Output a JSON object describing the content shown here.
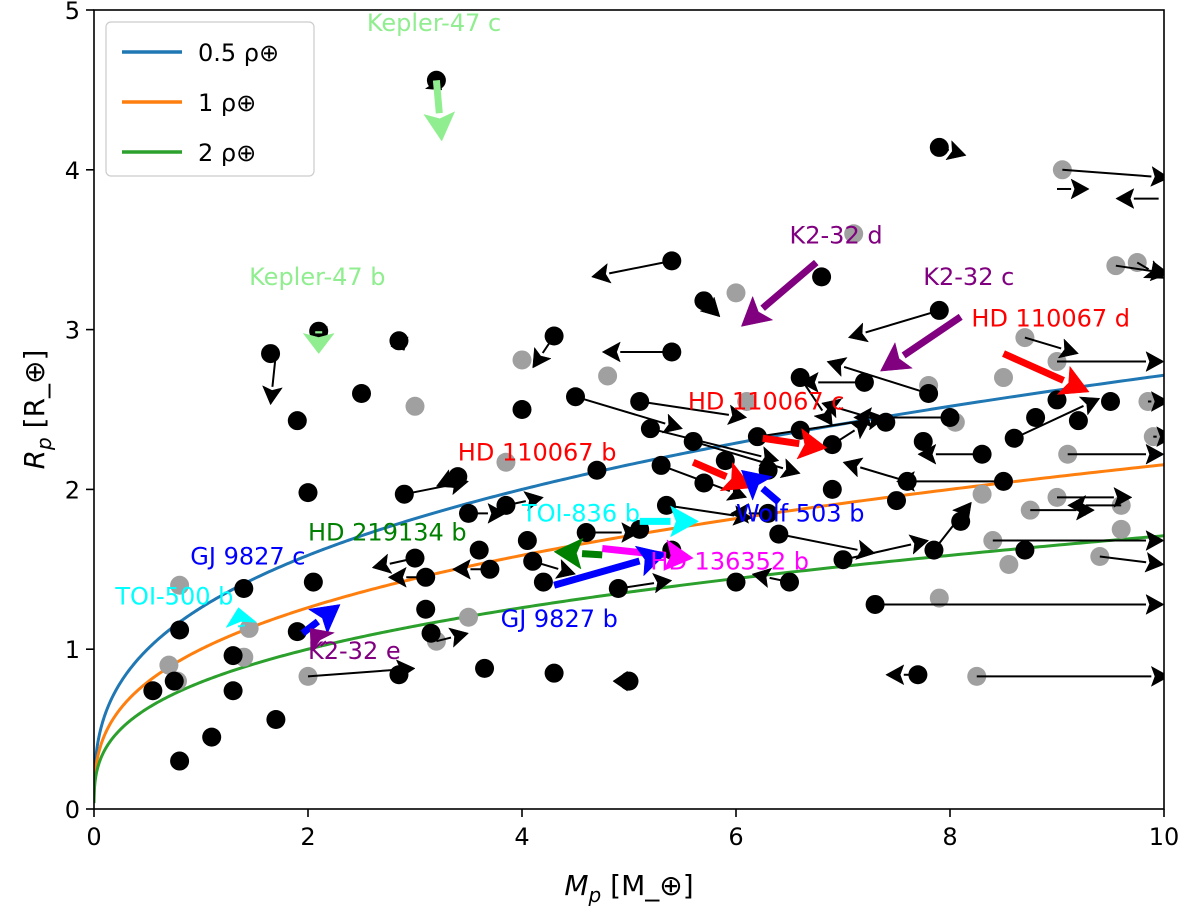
{
  "chart_data": {
    "type": "scatter",
    "xlabel": "M_p [M_⊕]",
    "ylabel": "R_p [R_⊕]",
    "xlim": [
      0,
      10
    ],
    "ylim": [
      0,
      5
    ],
    "xticks": [
      "0",
      "2",
      "4",
      "6",
      "8",
      "10"
    ],
    "yticks": [
      "0",
      "1",
      "2",
      "3",
      "4",
      "5"
    ],
    "legend_position": "top-left",
    "density_curves": [
      {
        "name": "0.5 ρ⊕",
        "rho": 0.5,
        "color": "#1f77b4"
      },
      {
        "name": "1 ρ⊕",
        "rho": 1.0,
        "color": "#ff7f0e"
      },
      {
        "name": "2 ρ⊕",
        "rho": 2.0,
        "color": "#2ca02c"
      }
    ],
    "black_points": [
      [
        0.8,
        0.3
      ],
      [
        0.55,
        0.74
      ],
      [
        0.75,
        0.8
      ],
      [
        0.8,
        1.12
      ],
      [
        1.1,
        0.45
      ],
      [
        1.3,
        0.74
      ],
      [
        1.3,
        0.96
      ],
      [
        1.4,
        1.38
      ],
      [
        1.9,
        1.11
      ],
      [
        1.7,
        0.56
      ],
      [
        1.65,
        2.85
      ],
      [
        1.9,
        2.43
      ],
      [
        2.0,
        1.98
      ],
      [
        2.05,
        1.42
      ],
      [
        2.1,
        2.99
      ],
      [
        2.5,
        2.6
      ],
      [
        2.85,
        2.93
      ],
      [
        2.85,
        0.84
      ],
      [
        2.9,
        1.97
      ],
      [
        3.0,
        1.57
      ],
      [
        3.1,
        1.45
      ],
      [
        3.1,
        1.25
      ],
      [
        3.15,
        1.1
      ],
      [
        3.2,
        4.56
      ],
      [
        3.4,
        2.08
      ],
      [
        3.5,
        1.85
      ],
      [
        3.6,
        1.62
      ],
      [
        3.7,
        1.5
      ],
      [
        3.65,
        0.88
      ],
      [
        3.85,
        1.9
      ],
      [
        4.0,
        2.5
      ],
      [
        4.05,
        1.68
      ],
      [
        4.1,
        1.55
      ],
      [
        4.2,
        1.42
      ],
      [
        4.3,
        2.96
      ],
      [
        4.3,
        0.85
      ],
      [
        4.5,
        2.58
      ],
      [
        4.6,
        1.73
      ],
      [
        4.7,
        2.12
      ],
      [
        4.9,
        1.38
      ],
      [
        5.0,
        0.8
      ],
      [
        5.1,
        2.55
      ],
      [
        5.1,
        1.75
      ],
      [
        5.2,
        2.38
      ],
      [
        5.3,
        2.15
      ],
      [
        5.35,
        1.9
      ],
      [
        5.4,
        1.62
      ],
      [
        5.4,
        2.86
      ],
      [
        5.4,
        3.43
      ],
      [
        5.6,
        2.3
      ],
      [
        5.7,
        2.04
      ],
      [
        5.7,
        3.18
      ],
      [
        5.9,
        2.18
      ],
      [
        6.0,
        1.42
      ],
      [
        6.2,
        2.33
      ],
      [
        6.3,
        1.85
      ],
      [
        6.3,
        2.12
      ],
      [
        6.4,
        1.72
      ],
      [
        6.5,
        1.42
      ],
      [
        6.6,
        2.7
      ],
      [
        6.6,
        2.37
      ],
      [
        6.8,
        3.33
      ],
      [
        6.9,
        2.28
      ],
      [
        6.9,
        2.0
      ],
      [
        7.0,
        1.56
      ],
      [
        7.2,
        2.67
      ],
      [
        7.3,
        1.28
      ],
      [
        7.4,
        2.42
      ],
      [
        7.5,
        1.93
      ],
      [
        7.6,
        2.05
      ],
      [
        7.7,
        0.84
      ],
      [
        7.75,
        2.3
      ],
      [
        7.8,
        2.6
      ],
      [
        7.85,
        1.62
      ],
      [
        7.9,
        4.14
      ],
      [
        7.9,
        3.12
      ],
      [
        8.0,
        2.45
      ],
      [
        8.1,
        1.8
      ],
      [
        8.3,
        2.22
      ],
      [
        8.5,
        2.05
      ],
      [
        8.6,
        2.32
      ],
      [
        8.7,
        1.62
      ],
      [
        8.8,
        2.45
      ],
      [
        9.0,
        2.56
      ],
      [
        9.2,
        2.43
      ],
      [
        9.5,
        2.55
      ]
    ],
    "gray_points": [
      [
        0.8,
        1.4
      ],
      [
        0.7,
        0.9
      ],
      [
        0.78,
        0.8
      ],
      [
        1.45,
        1.13
      ],
      [
        1.4,
        0.95
      ],
      [
        2.0,
        0.83
      ],
      [
        3.0,
        2.52
      ],
      [
        3.2,
        1.05
      ],
      [
        3.5,
        1.2
      ],
      [
        3.85,
        2.17
      ],
      [
        4.0,
        2.81
      ],
      [
        4.8,
        2.71
      ],
      [
        6.0,
        3.23
      ],
      [
        6.1,
        2.55
      ],
      [
        7.1,
        3.6
      ],
      [
        7.8,
        2.65
      ],
      [
        7.9,
        1.32
      ],
      [
        8.05,
        2.42
      ],
      [
        8.3,
        1.97
      ],
      [
        8.4,
        1.68
      ],
      [
        8.5,
        2.7
      ],
      [
        8.55,
        1.53
      ],
      [
        8.7,
        2.95
      ],
      [
        8.75,
        1.87
      ],
      [
        9.0,
        2.8
      ],
      [
        9.05,
        4.0
      ],
      [
        9.1,
        2.22
      ],
      [
        9.0,
        1.95
      ],
      [
        9.4,
        1.58
      ],
      [
        9.55,
        3.4
      ],
      [
        9.75,
        3.42
      ],
      [
        9.85,
        2.55
      ],
      [
        9.9,
        2.33
      ],
      [
        9.6,
        1.9
      ],
      [
        9.6,
        1.75
      ],
      [
        8.25,
        0.83
      ]
    ],
    "black_arrows": [
      [
        1.7,
        2.85,
        -0.05,
        -0.32
      ],
      [
        3.15,
        4.56,
        0.1,
        -0.06
      ],
      [
        2.1,
        2.99,
        0.05,
        -0.05
      ],
      [
        2.85,
        2.93,
        0.05,
        -0.06
      ],
      [
        3.1,
        1.45,
        -0.35,
        0.0
      ],
      [
        3.0,
        1.57,
        -0.4,
        -0.06
      ],
      [
        3.4,
        2.08,
        -0.2,
        -0.06
      ],
      [
        3.5,
        1.85,
        0.35,
        0.0
      ],
      [
        3.7,
        1.5,
        -0.35,
        0.0
      ],
      [
        3.85,
        1.9,
        0.35,
        0.05
      ],
      [
        2.9,
        1.97,
        0.6,
        0.08
      ],
      [
        4.3,
        2.96,
        -0.2,
        -0.2
      ],
      [
        5.4,
        2.86,
        -0.65,
        0.0
      ],
      [
        5.4,
        3.43,
        -0.75,
        -0.1
      ],
      [
        5.7,
        3.18,
        0.15,
        -0.1
      ],
      [
        4.5,
        2.58,
        1.0,
        -0.2
      ],
      [
        5.2,
        2.38,
        1.2,
        -0.2
      ],
      [
        5.1,
        2.55,
        1.0,
        -0.1
      ],
      [
        5.6,
        2.3,
        1.0,
        -0.2
      ],
      [
        5.3,
        2.15,
        0.8,
        -0.2
      ],
      [
        5.35,
        1.9,
        0.8,
        -0.08
      ],
      [
        6.3,
        1.85,
        -0.35,
        0.0
      ],
      [
        6.5,
        1.42,
        -0.35,
        0.05
      ],
      [
        6.2,
        2.33,
        1.2,
        0.12
      ],
      [
        7.2,
        2.67,
        -0.6,
        0.0
      ],
      [
        6.6,
        2.7,
        0.3,
        -0.3
      ],
      [
        6.9,
        2.28,
        0.35,
        0.15
      ],
      [
        7.4,
        2.42,
        -0.6,
        0.12
      ],
      [
        7.6,
        2.05,
        -0.6,
        0.12
      ],
      [
        7.8,
        2.6,
        -0.95,
        0.2
      ],
      [
        7.9,
        3.12,
        -0.85,
        -0.17
      ],
      [
        8.0,
        2.45,
        -0.9,
        0.0
      ],
      [
        8.3,
        2.22,
        -0.6,
        0.0
      ],
      [
        8.5,
        2.05,
        -1.0,
        0.0
      ],
      [
        7.9,
        4.14,
        0.25,
        -0.05
      ],
      [
        8.6,
        2.32,
        0.8,
        0.25
      ],
      [
        7.85,
        1.62,
        0.35,
        0.3
      ],
      [
        6.4,
        1.72,
        0.9,
        -0.12
      ],
      [
        7.0,
        1.56,
        0.8,
        0.12
      ],
      [
        7.3,
        1.28,
        2.7,
        0.0
      ],
      [
        7.7,
        0.84,
        -0.3,
        0.0
      ],
      [
        5.0,
        0.8,
        -0.15,
        0.0
      ],
      [
        4.1,
        1.55,
        0.4,
        -0.08
      ],
      [
        4.6,
        1.73,
        0.5,
        0.0
      ],
      [
        4.9,
        1.38,
        0.5,
        0.05
      ],
      [
        8.7,
        2.95,
        0.5,
        -0.1
      ],
      [
        8.75,
        1.87,
        0.6,
        0.0
      ],
      [
        9.05,
        4.0,
        1.0,
        -0.05
      ],
      [
        9.0,
        1.95,
        0.7,
        0.0
      ],
      [
        9.4,
        1.58,
        0.6,
        -0.05
      ],
      [
        9.6,
        1.9,
        -0.5,
        0.0
      ],
      [
        9.55,
        3.4,
        0.5,
        -0.05
      ],
      [
        9.85,
        2.55,
        0.2,
        0.0
      ],
      [
        9.9,
        2.33,
        0.2,
        0.0
      ],
      [
        9.1,
        2.22,
        0.9,
        0.0
      ],
      [
        8.4,
        1.68,
        1.6,
        0.0
      ],
      [
        8.25,
        0.83,
        1.8,
        0.0
      ],
      [
        2.0,
        0.83,
        1.0,
        0.05
      ],
      [
        3.2,
        1.05,
        0.3,
        0.05
      ],
      [
        9.0,
        2.8,
        1.0,
        0.0
      ],
      [
        9.75,
        3.42,
        0.25,
        -0.1
      ],
      [
        9.0,
        3.88,
        0.3,
        0.0
      ],
      [
        9.95,
        3.82,
        -0.4,
        0.0
      ]
    ],
    "highlighted": [
      {
        "label": "Kepler-47 c",
        "color": "#90ee90",
        "x": 3.2,
        "y": 4.56,
        "dx": 0.05,
        "dy": -0.38,
        "lx": 2.55,
        "ly": 4.87
      },
      {
        "label": "Kepler-47 b",
        "color": "#90ee90",
        "x": 2.1,
        "y": 2.99,
        "dx": 0.0,
        "dy": -0.14,
        "lx": 1.45,
        "ly": 3.28
      },
      {
        "label": "K2-32 d",
        "color": "#800080",
        "x": 6.75,
        "y": 3.42,
        "dx": -0.7,
        "dy": -0.4,
        "lx": 6.5,
        "ly": 3.54
      },
      {
        "label": "K2-32 c",
        "color": "#800080",
        "x": 8.1,
        "y": 3.08,
        "dx": -0.75,
        "dy": -0.34,
        "lx": 7.75,
        "ly": 3.28
      },
      {
        "label": "HD 110067 d",
        "color": "#ff0000",
        "x": 8.5,
        "y": 2.85,
        "dx": 0.8,
        "dy": -0.24,
        "lx": 8.2,
        "ly": 3.02
      },
      {
        "label": "HD 110067 c",
        "color": "#ff0000",
        "x": 6.25,
        "y": 2.32,
        "dx": 0.6,
        "dy": -0.06,
        "lx": 5.55,
        "ly": 2.5
      },
      {
        "label": "HD 110067 b",
        "color": "#ff0000",
        "x": 5.6,
        "y": 2.17,
        "dx": 0.55,
        "dy": -0.16,
        "lx": 3.4,
        "ly": 2.18
      },
      {
        "label": "Wolf 503 b",
        "color": "#0000ff",
        "x": 6.4,
        "y": 1.92,
        "dx": -0.35,
        "dy": 0.2,
        "lx": 6.0,
        "ly": 1.8
      },
      {
        "label": "TOI-836 b",
        "color": "#00ffff",
        "x": 5.1,
        "y": 1.8,
        "dx": 0.55,
        "dy": 0.0,
        "lx": 4.0,
        "ly": 1.8
      },
      {
        "label": "HD 219134 b",
        "color": "#008000",
        "x": 4.75,
        "y": 1.59,
        "dx": -0.45,
        "dy": 0.02,
        "lx": 2.0,
        "ly": 1.68
      },
      {
        "label": "HD 136352 b",
        "color": "#ff00ff",
        "x": 4.75,
        "y": 1.63,
        "dx": 0.85,
        "dy": -0.06,
        "lx": 5.2,
        "ly": 1.5
      },
      {
        "label": "GJ 9827 b",
        "color": "#0000ff",
        "x": 4.3,
        "y": 1.4,
        "dx": 1.05,
        "dy": 0.2,
        "lx": 3.8,
        "ly": 1.14
      },
      {
        "label": "GJ 9827 c",
        "color": "#0000ff",
        "x": 1.95,
        "y": 1.1,
        "dx": 0.35,
        "dy": 0.18,
        "lx": 0.9,
        "ly": 1.53
      },
      {
        "label": "TOI-500 b",
        "color": "#00ffff",
        "x": 1.38,
        "y": 1.14,
        "dx": -0.03,
        "dy": 0.12,
        "lx": 0.2,
        "ly": 1.28
      },
      {
        "label": "K2-32 e",
        "color": "#800080",
        "x": 2.15,
        "y": 1.03,
        "dx": -0.13,
        "dy": 0.1,
        "lx": 2.0,
        "ly": 0.94
      }
    ]
  },
  "legend": {
    "items": [
      {
        "label": "0.5 ρ⊕",
        "color": "#1f77b4"
      },
      {
        "label": "1 ρ⊕",
        "color": "#ff7f0e"
      },
      {
        "label": "2 ρ⊕",
        "color": "#2ca02c"
      }
    ]
  }
}
